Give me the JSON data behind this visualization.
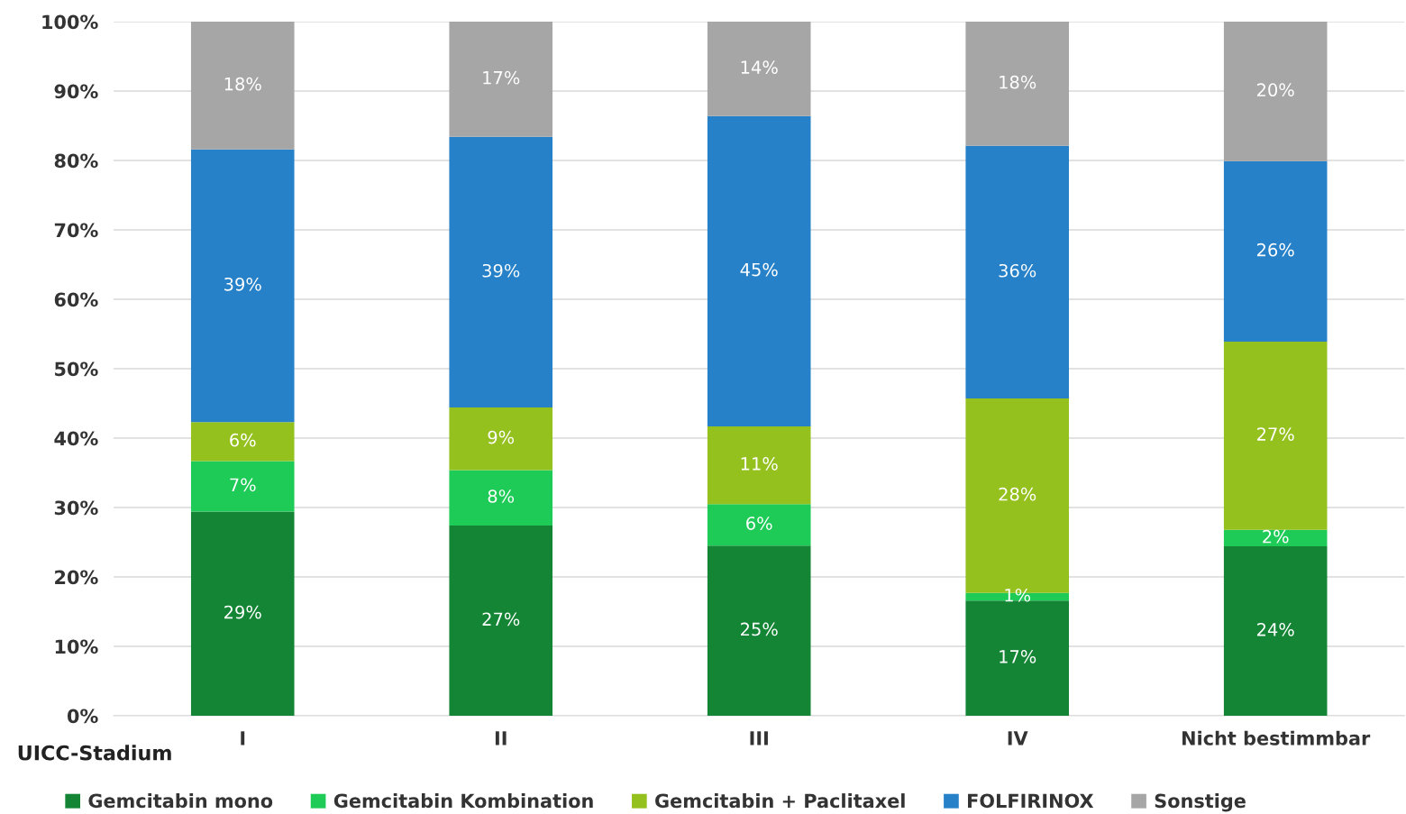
{
  "chart_data": {
    "type": "bar",
    "stacked": true,
    "xlabel": "UICC-Stadium",
    "categories": [
      "I",
      "II",
      "III",
      "IV",
      "Nicht bestimmbar"
    ],
    "series": [
      {
        "name": "Gemcitabin mono",
        "color": "#138535",
        "values": [
          29.4,
          27.4,
          24.5,
          16.6,
          24.4
        ],
        "value_labels": [
          "29%",
          "27%",
          "25%",
          "17%",
          "24%"
        ]
      },
      {
        "name": "Gemcitabin Kombination",
        "color": "#1ecb57",
        "values": [
          7.3,
          8.0,
          6.0,
          1.1,
          2.4
        ],
        "value_labels": [
          "7%",
          "8%",
          "6%",
          "1%",
          "2%"
        ]
      },
      {
        "name": "Gemcitabin + Paclitaxel",
        "color": "#95c11f",
        "values": [
          5.6,
          9.0,
          11.2,
          28.0,
          27.1
        ],
        "value_labels": [
          "6%",
          "9%",
          "11%",
          "28%",
          "27%"
        ]
      },
      {
        "name": "FOLFIRINOX",
        "color": "#2681c9",
        "values": [
          39.3,
          39.0,
          44.7,
          36.4,
          26.0
        ],
        "value_labels": [
          "39%",
          "39%",
          "45%",
          "36%",
          "26%"
        ]
      },
      {
        "name": "Sonstige",
        "color": "#a6a6a6",
        "values": [
          18.4,
          16.6,
          13.6,
          17.9,
          20.1
        ],
        "value_labels": [
          "18%",
          "17%",
          "14%",
          "18%",
          "20%"
        ]
      }
    ],
    "ylim": [
      0,
      100
    ],
    "yticks": [
      {
        "value": 0,
        "label": "0%"
      },
      {
        "value": 10,
        "label": "10%"
      },
      {
        "value": 20,
        "label": "20%"
      },
      {
        "value": 30,
        "label": "30%"
      },
      {
        "value": 40,
        "label": "40%"
      },
      {
        "value": 50,
        "label": "50%"
      },
      {
        "value": 60,
        "label": "60%"
      },
      {
        "value": 70,
        "label": "70%"
      },
      {
        "value": 80,
        "label": "80%"
      },
      {
        "value": 90,
        "label": "90%"
      },
      {
        "value": 100,
        "label": "100%"
      }
    ],
    "grid": "y",
    "legend": "bottom"
  }
}
